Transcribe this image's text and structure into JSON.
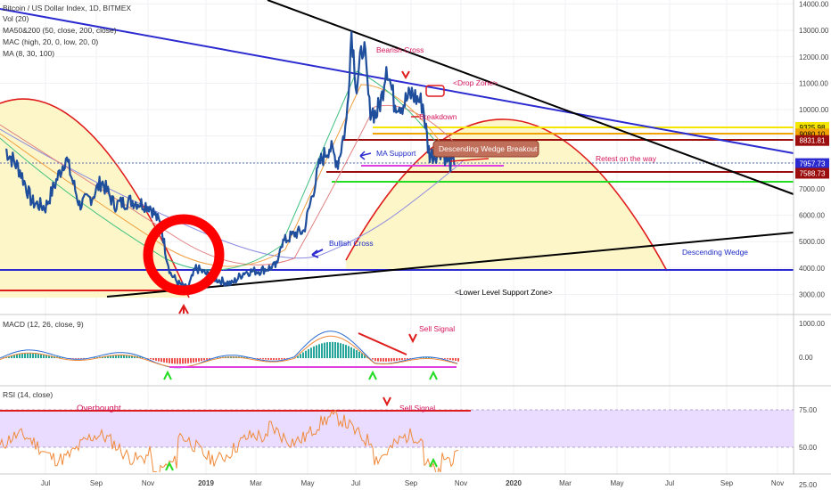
{
  "header": {
    "title": "Bitcoin / US Dollar Index, 1D, BITMEX",
    "indicators": [
      "Vol (20)",
      "MA50&200 (50, close, 200, close)",
      "MAC (high, 20, 0, low, 20, 0)",
      "MA (8, 30, 100)"
    ]
  },
  "colors": {
    "price": "#1f4e9c",
    "resistance_blue": "#2b2bd0",
    "trend_black": "#000000",
    "arc_red": "#e01b1b",
    "arc_fill": "#fdf6c8",
    "level_yellow": "#f5e600",
    "level_orange": "#f0a300",
    "level_darkred": "#9c0d0d",
    "level_green": "#22dd22",
    "level_magenta": "#e040e0",
    "annotation_red": "#d4145a",
    "annotation_blue": "#1e2bc4",
    "rsi_band": "#eadcff",
    "rsi_line": "#f08a3a"
  },
  "chart_data": [
    {
      "type": "line",
      "name": "main-price-panel",
      "title": "Bitcoin / US Dollar Index, 1D, BITMEX",
      "x_tick_labels": [
        "Jul",
        "Sep",
        "Nov",
        "2019",
        "Mar",
        "May",
        "Jul",
        "Sep",
        "Nov",
        "2020",
        "Mar",
        "May",
        "Jul",
        "Sep",
        "Nov"
      ],
      "y_tick_labels": [
        "3000.00",
        "4000.00",
        "5000.00",
        "6000.00",
        "7000.00",
        "8000.00",
        "9000.00",
        "10000.00",
        "11000.00",
        "12000.00",
        "13000.00",
        "14000.00"
      ],
      "ylim": [
        2200,
        14100
      ],
      "series": [
        {
          "x": [
            "2018-05-15",
            "2018-06-01",
            "2018-06-15",
            "2018-07-01",
            "2018-07-15",
            "2018-07-25",
            "2018-08-10",
            "2018-08-25",
            "2018-09-05",
            "2018-09-20",
            "2018-10-10",
            "2018-11-01",
            "2018-11-14",
            "2018-11-20",
            "2018-11-25",
            "2018-12-05",
            "2018-12-15",
            "2018-12-25",
            "2019-01-05",
            "2019-01-20",
            "2019-02-05",
            "2019-02-20",
            "2019-03-10",
            "2019-03-31",
            "2019-04-03",
            "2019-04-20",
            "2019-05-01",
            "2019-05-11",
            "2019-05-20",
            "2019-05-31",
            "2019-06-10",
            "2019-06-20",
            "2019-06-26",
            "2019-07-02",
            "2019-07-10",
            "2019-07-17",
            "2019-07-25",
            "2019-08-01",
            "2019-08-06",
            "2019-08-15",
            "2019-08-25",
            "2019-09-05",
            "2019-09-18",
            "2019-09-24",
            "2019-09-26",
            "2019-10-01",
            "2019-10-10",
            "2019-10-18",
            "2019-10-25"
          ],
          "values": [
            8500,
            7700,
            6500,
            6300,
            7400,
            8200,
            6400,
            6700,
            7300,
            6400,
            6550,
            6350,
            5600,
            4500,
            3800,
            3400,
            3200,
            4000,
            3800,
            3550,
            3400,
            3850,
            3900,
            4100,
            4900,
            5300,
            5400,
            6800,
            8000,
            8600,
            8000,
            9500,
            13000,
            10800,
            12600,
            10100,
            9800,
            10500,
            11800,
            10300,
            10200,
            10600,
            10200,
            8600,
            8300,
            8300,
            8500,
            8000,
            7900
          ]
        }
      ],
      "levels": [
        {
          "label": "9325.98",
          "value": 9325.98,
          "color": "#f5e600"
        },
        {
          "label": "9080.10",
          "value": 9080.1,
          "color": "#f0a300"
        },
        {
          "label": "8831.81",
          "value": 8831.81,
          "color": "#9c0d0d"
        },
        {
          "label": "7957.73",
          "value": 7957.73,
          "color": "#2b2bd0"
        },
        {
          "label": "7588.73",
          "value": 7588.73,
          "color": "#9c0d0d"
        }
      ],
      "annotations": [
        "Bearish Cross",
        "<Drop Zone>",
        "Breakdown",
        "Descending Wedge Breakout",
        "MA Support",
        "Retest on the way",
        "Bullish Cross",
        "Descending Wedge",
        "<Lower Level Support Zone>"
      ]
    },
    {
      "type": "line",
      "name": "macd-panel",
      "title": "MACD (12, 26, close, 9)",
      "y_tick_labels": [
        "1000.00",
        "0.00"
      ],
      "annotations": [
        "Sell Signal"
      ]
    },
    {
      "type": "line",
      "name": "rsi-panel",
      "title": "RSI (14, close)",
      "y_tick_labels": [
        "75.00",
        "50.00",
        "25.00"
      ],
      "ylim": [
        15,
        88
      ],
      "annotations": [
        "Overbought",
        "Sell Signal"
      ]
    }
  ]
}
